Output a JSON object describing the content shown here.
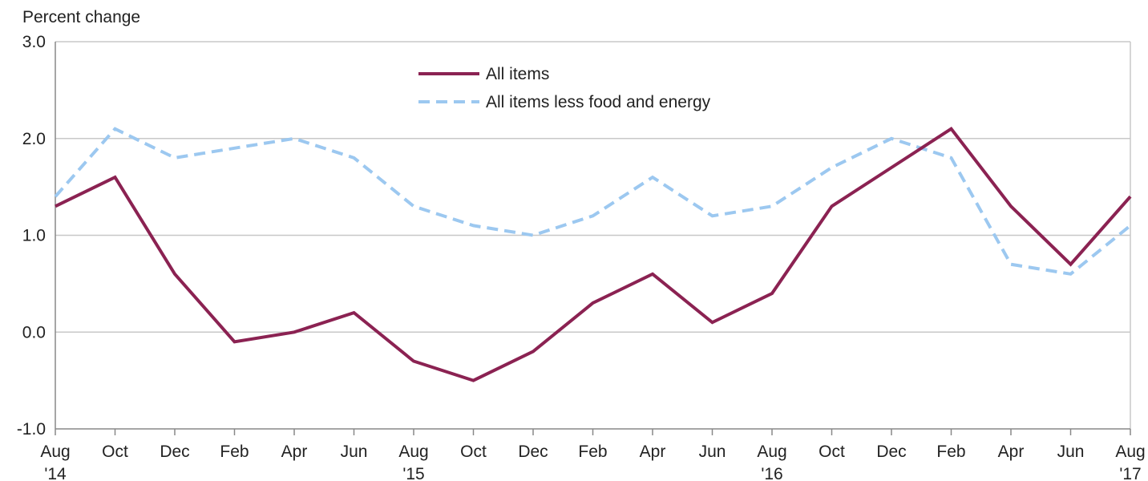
{
  "chart_data": {
    "type": "line",
    "ylabel": "Percent change",
    "ylim": [
      -1.0,
      3.0
    ],
    "yticks": [
      "3.0",
      "2.0",
      "1.0",
      "0.0",
      "-1.0"
    ],
    "ytick_values": [
      3.0,
      2.0,
      1.0,
      0.0,
      -1.0
    ],
    "grid": true,
    "legend_position": "top-center",
    "x": [
      "Aug '14",
      "Oct '14",
      "Dec '14",
      "Feb '15",
      "Apr '15",
      "Jun '15",
      "Aug '15",
      "Oct '15",
      "Dec '15",
      "Feb '16",
      "Apr '16",
      "Jun '16",
      "Aug '16",
      "Oct '16",
      "Dec '16",
      "Feb '17",
      "Apr '17",
      "Jun '17",
      "Aug '17"
    ],
    "x_tick_labels": [
      {
        "month": "Aug",
        "year": "'14"
      },
      {
        "month": "Oct",
        "year": ""
      },
      {
        "month": "Dec",
        "year": ""
      },
      {
        "month": "Feb",
        "year": ""
      },
      {
        "month": "Apr",
        "year": ""
      },
      {
        "month": "Jun",
        "year": ""
      },
      {
        "month": "Aug",
        "year": "'15"
      },
      {
        "month": "Oct",
        "year": ""
      },
      {
        "month": "Dec",
        "year": ""
      },
      {
        "month": "Feb",
        "year": ""
      },
      {
        "month": "Apr",
        "year": ""
      },
      {
        "month": "Jun",
        "year": ""
      },
      {
        "month": "Aug",
        "year": "'16"
      },
      {
        "month": "Oct",
        "year": ""
      },
      {
        "month": "Dec",
        "year": ""
      },
      {
        "month": "Feb",
        "year": ""
      },
      {
        "month": "Apr",
        "year": ""
      },
      {
        "month": "Jun",
        "year": ""
      },
      {
        "month": "Aug",
        "year": "'17"
      }
    ],
    "series": [
      {
        "name": "All items",
        "color": "#8B2252",
        "style": "solid",
        "values": [
          1.3,
          1.6,
          0.6,
          -0.1,
          0.0,
          0.2,
          -0.3,
          -0.5,
          -0.2,
          0.3,
          0.6,
          0.1,
          0.4,
          1.3,
          1.7,
          2.1,
          1.3,
          0.7,
          1.4
        ]
      },
      {
        "name": "All items less food and energy",
        "color": "#9CC8F0",
        "style": "dashed",
        "values": [
          1.4,
          2.1,
          1.8,
          1.9,
          2.0,
          1.8,
          1.3,
          1.1,
          1.0,
          1.2,
          1.6,
          1.2,
          1.3,
          1.7,
          2.0,
          1.8,
          0.7,
          0.6,
          1.1
        ]
      }
    ]
  }
}
